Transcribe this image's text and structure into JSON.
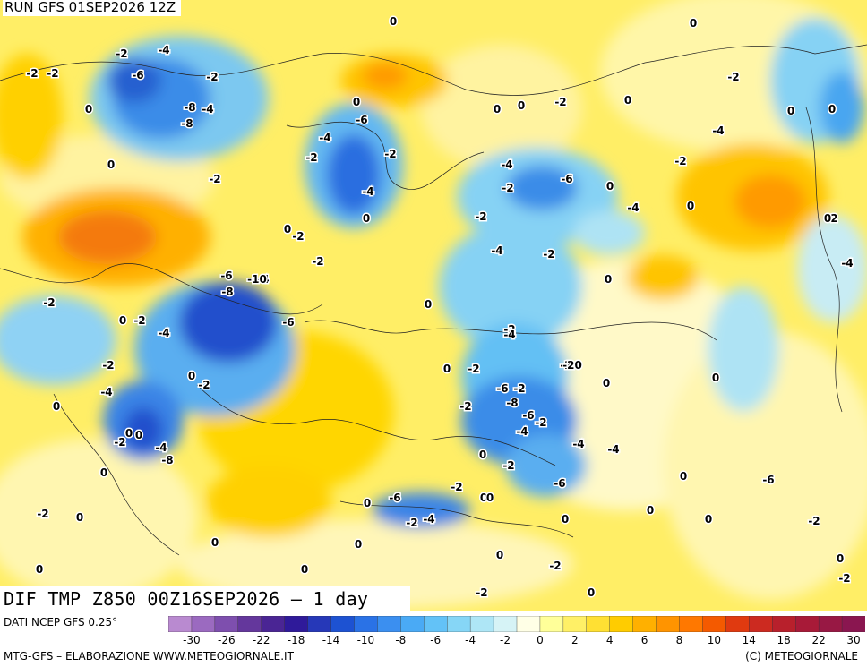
{
  "header": {
    "run_label": "RUN GFS 01SEP2026 12Z"
  },
  "title": {
    "text": "DIF TMP Z850 00Z16SEP2026 – 1 day"
  },
  "footer": {
    "source": "DATI NCEP GFS 0.25°",
    "credit_left": "MTG-GFS – ELABORAZIONE WWW.METEOGIORNALE.IT",
    "credit_right": "(C) METEOGIORNALE"
  },
  "colors": {
    "scale": [
      "#b98ad0",
      "#9b6ac0",
      "#7e4fae",
      "#64379c",
      "#4a2594",
      "#2f1a9a",
      "#2638b8",
      "#1d52d2",
      "#2a72e6",
      "#3b8ff0",
      "#4aaaf5",
      "#63c2f7",
      "#86d6f6",
      "#aee6f6",
      "#d6f3f6",
      "#ffffe6",
      "#ffff99",
      "#fff066",
      "#ffe033",
      "#ffcc00",
      "#ffb000",
      "#ff9400",
      "#ff7800",
      "#f45a00",
      "#e03a10",
      "#cc2a20",
      "#b8202c",
      "#a81a38",
      "#981844",
      "#8a1650"
    ],
    "map_base": "#ffee66"
  },
  "colorbar": {
    "ticks": [
      "-30",
      "-26",
      "-22",
      "-18",
      "-14",
      "-10",
      "-8",
      "-6",
      "-4",
      "-2",
      "0",
      "2",
      "4",
      "6",
      "8",
      "10",
      "14",
      "18",
      "22",
      "30"
    ]
  },
  "map_labels": [
    "-2",
    "-2",
    "0",
    "-2",
    "-4",
    "-6",
    "-2",
    "0",
    "-2",
    "0",
    "0",
    "0",
    "-2",
    "0",
    "-2",
    "-6",
    "-4",
    "-4",
    "0",
    "-8",
    "-2",
    "0",
    "-2",
    "0",
    "-6",
    "-4",
    "-2",
    "-2",
    "-4",
    "0",
    "-4",
    "-6",
    "-2",
    "0",
    "-2",
    "-8",
    "0",
    "-2",
    "-4",
    "0",
    "0",
    "-4",
    "-2",
    "-2",
    "-4",
    "-4",
    "-8",
    "-10",
    "-2",
    "0",
    "-4",
    "-2",
    "0",
    "-2",
    "0",
    "-6",
    "-2",
    "0",
    "-2",
    "-2",
    "-4",
    "-20",
    "0",
    "-2",
    "-6",
    "-8",
    "-6",
    "-2",
    "-4",
    "-2",
    "-4",
    "-2",
    "-6",
    "-4",
    "-8",
    "0",
    "-2",
    "-4",
    "0",
    "0",
    "-2",
    "0",
    "-4",
    "-2",
    "0",
    "-6",
    "0",
    "0",
    "-2",
    "0",
    "0",
    "-6",
    "-4",
    "-2",
    "0",
    "0",
    "0",
    "0",
    "0",
    "0",
    "-2",
    "-2",
    "0",
    "0",
    "-2",
    "0",
    "0",
    "0",
    "-2",
    "0",
    "0",
    "0"
  ]
}
